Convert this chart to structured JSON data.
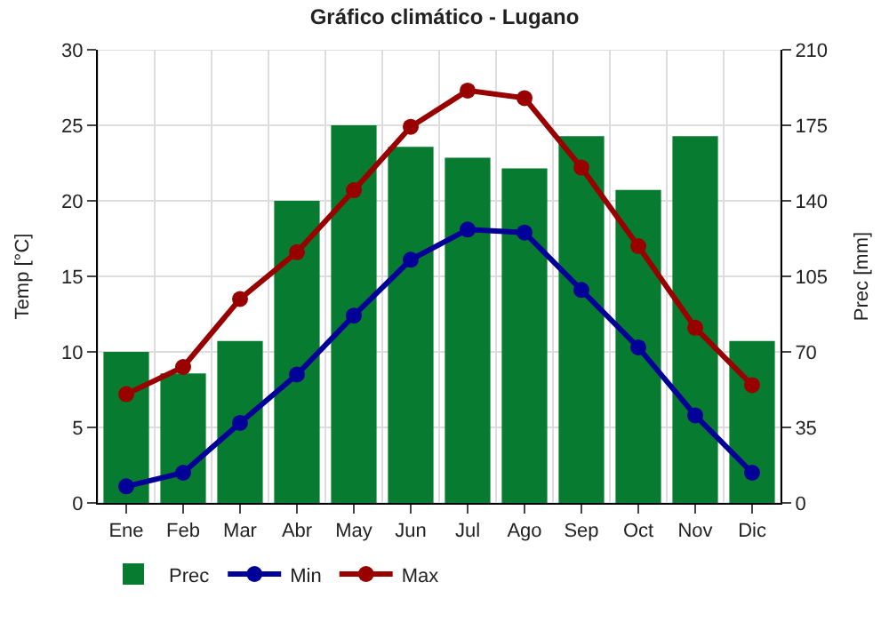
{
  "chart_data": {
    "type": "bar",
    "title": "Gráfico climático - Lugano",
    "ylabel": "Temp [°C]",
    "y2label": "Prec [mm]",
    "categories": [
      "Ene",
      "Feb",
      "Mar",
      "Abr",
      "May",
      "Jun",
      "Jul",
      "Ago",
      "Sep",
      "Oct",
      "Nov",
      "Dic"
    ],
    "series": [
      {
        "name": "Prec",
        "axis": "y2",
        "color": "#077b30",
        "values": [
          70,
          60,
          75,
          140,
          175,
          165,
          160,
          155,
          170,
          145,
          170,
          75
        ]
      },
      {
        "name": "Min",
        "type": "line",
        "color": "#000099",
        "values": [
          1.1,
          2.0,
          5.3,
          8.5,
          12.4,
          16.1,
          18.1,
          17.9,
          14.1,
          10.3,
          5.8,
          2.0
        ]
      },
      {
        "name": "Max",
        "type": "line",
        "color": "#990000",
        "values": [
          7.2,
          9.0,
          13.5,
          16.6,
          20.7,
          24.9,
          27.3,
          26.8,
          22.2,
          17.0,
          11.6,
          7.8
        ]
      }
    ],
    "ylim": [
      0,
      30
    ],
    "yticks": [
      0,
      5,
      10,
      15,
      20,
      25,
      30
    ],
    "y2lim": [
      0,
      210
    ],
    "y2ticks": [
      0,
      35,
      70,
      105,
      140,
      175,
      210
    ],
    "grid": true,
    "legend": "bottom left",
    "marker": "circle",
    "line_style": "solid"
  }
}
